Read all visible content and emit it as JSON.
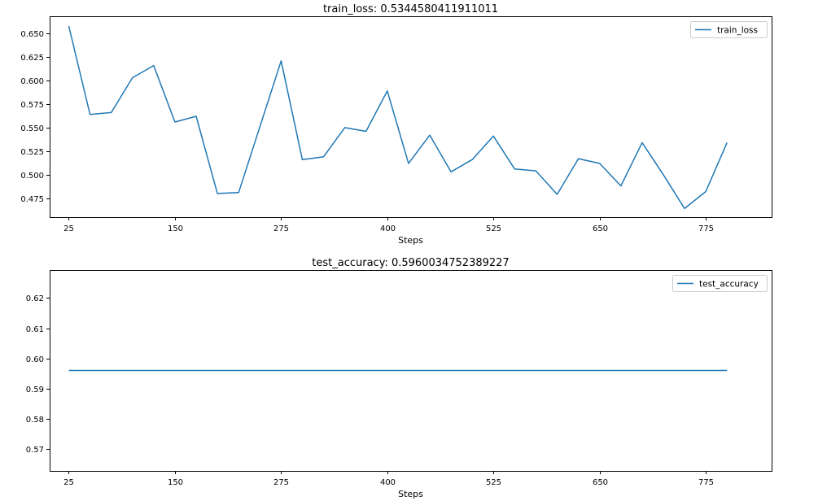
{
  "chart_data": [
    {
      "type": "line",
      "title": "train_loss: 0.5344580411911011",
      "xlabel": "Steps",
      "ylabel": "",
      "xlim": [
        2.5,
        852.5
      ],
      "ylim": [
        0.4548,
        0.6684
      ],
      "x_ticks": [
        25,
        150,
        275,
        400,
        525,
        650,
        775
      ],
      "y_ticks": [
        0.475,
        0.5,
        0.525,
        0.55,
        0.575,
        0.6,
        0.625,
        0.65
      ],
      "y_tick_labels": [
        "0.475",
        "0.500",
        "0.525",
        "0.550",
        "0.575",
        "0.600",
        "0.625",
        "0.650"
      ],
      "legend_position": "upper-right",
      "grid": false,
      "series": [
        {
          "name": "train_loss",
          "color": "#1f77b4",
          "x": [
            25,
            50,
            75,
            100,
            125,
            150,
            175,
            200,
            225,
            250,
            275,
            300,
            325,
            350,
            375,
            400,
            425,
            450,
            475,
            500,
            525,
            550,
            575,
            600,
            625,
            650,
            675,
            700,
            725,
            750,
            775,
            800
          ],
          "y": [
            0.658,
            0.564,
            0.566,
            0.603,
            0.616,
            0.556,
            0.562,
            0.48,
            0.481,
            0.551,
            0.621,
            0.516,
            0.519,
            0.55,
            0.546,
            0.589,
            0.512,
            0.542,
            0.503,
            0.516,
            0.541,
            0.506,
            0.504,
            0.479,
            0.517,
            0.512,
            0.488,
            0.534,
            0.5,
            0.464,
            0.482,
            0.534
          ]
        }
      ]
    },
    {
      "type": "line",
      "title": "test_accuracy: 0.5960034752389227",
      "xlabel": "Steps",
      "ylabel": "",
      "xlim": [
        2.5,
        852.5
      ],
      "ylim": [
        0.5627,
        0.6293
      ],
      "x_ticks": [
        25,
        150,
        275,
        400,
        525,
        650,
        775
      ],
      "y_ticks": [
        0.57,
        0.58,
        0.59,
        0.6,
        0.61,
        0.62
      ],
      "y_tick_labels": [
        "0.57",
        "0.58",
        "0.59",
        "0.60",
        "0.61",
        "0.62"
      ],
      "legend_position": "upper-right",
      "grid": false,
      "series": [
        {
          "name": "test_accuracy",
          "color": "#1f77b4",
          "x": [
            25,
            800
          ],
          "y": [
            0.5960034752389227,
            0.5960034752389227
          ]
        }
      ]
    }
  ]
}
